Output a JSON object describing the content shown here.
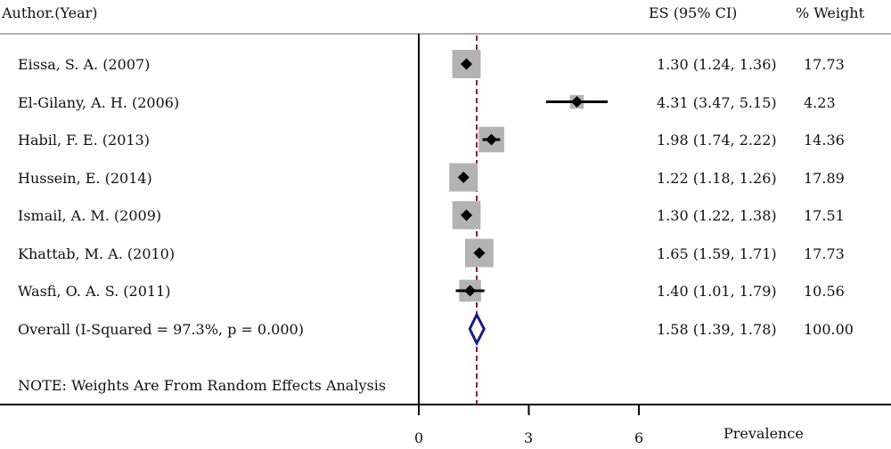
{
  "headers": {
    "study": "Author.(Year)",
    "es": "ES (95% CI)",
    "weight": "% Weight"
  },
  "chart_data": {
    "type": "forest",
    "xlabel": "Prevalence",
    "xticks": [
      0,
      3,
      6
    ],
    "xlim": [
      0,
      6
    ],
    "overall_line_style": "dashed dark red",
    "studies": [
      {
        "label": "Eissa, S. A. (2007)",
        "es": 1.3,
        "lo": 1.24,
        "hi": 1.36,
        "es_text": "1.30 (1.24, 1.36)",
        "weight": 17.73,
        "weight_text": "17.73"
      },
      {
        "label": "El-Gilany, A. H. (2006)",
        "es": 4.31,
        "lo": 3.47,
        "hi": 5.15,
        "es_text": "4.31 (3.47, 5.15)",
        "weight": 4.23,
        "weight_text": "4.23"
      },
      {
        "label": "Habil, F. E. (2013)",
        "es": 1.98,
        "lo": 1.74,
        "hi": 2.22,
        "es_text": "1.98 (1.74, 2.22)",
        "weight": 14.36,
        "weight_text": "14.36"
      },
      {
        "label": "Hussein, E. (2014)",
        "es": 1.22,
        "lo": 1.18,
        "hi": 1.26,
        "es_text": "1.22 (1.18, 1.26)",
        "weight": 17.89,
        "weight_text": "17.89"
      },
      {
        "label": "Ismail, A. M. (2009)",
        "es": 1.3,
        "lo": 1.22,
        "hi": 1.38,
        "es_text": "1.30 (1.22, 1.38)",
        "weight": 17.51,
        "weight_text": "17.51"
      },
      {
        "label": "Khattab, M. A. (2010)",
        "es": 1.65,
        "lo": 1.59,
        "hi": 1.71,
        "es_text": "1.65 (1.59, 1.71)",
        "weight": 17.73,
        "weight_text": "17.73"
      },
      {
        "label": "Wasfi, O. A. S. (2011)",
        "es": 1.4,
        "lo": 1.01,
        "hi": 1.79,
        "es_text": "1.40 (1.01, 1.79)",
        "weight": 10.56,
        "weight_text": "10.56"
      }
    ],
    "overall": {
      "label": "Overall  (I-Squared = 97.3%, p = 0.000)",
      "es": 1.58,
      "lo": 1.39,
      "hi": 1.78,
      "es_text": "1.58 (1.39, 1.78)",
      "weight_text": "100.00"
    },
    "note": "NOTE: Weights Are From Random Effects Analysis",
    "colors": {
      "box": "#b3b3b3",
      "marker": "#000000",
      "diamond": "#1a1a8c",
      "overall_line": "#8b1a3a",
      "rule": "#b0b0b0"
    }
  }
}
